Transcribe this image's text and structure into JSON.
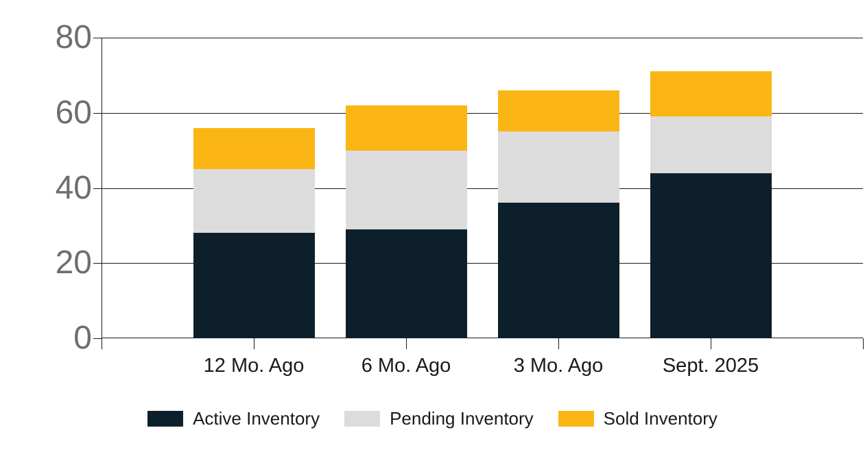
{
  "chart_data": {
    "type": "bar",
    "stacked": true,
    "title": "",
    "xlabel": "",
    "ylabel": "",
    "categories": [
      "12 Mo. Ago",
      "6 Mo. Ago",
      "3 Mo. Ago",
      "Sept. 2025"
    ],
    "series": [
      {
        "name": "Active Inventory",
        "color": "#0d1f2b",
        "values": [
          28,
          29,
          36,
          44
        ]
      },
      {
        "name": "Pending Inventory",
        "color": "#dcdcdc",
        "values": [
          17,
          21,
          19,
          15
        ]
      },
      {
        "name": "Sold Inventory",
        "color": "#fbb615",
        "values": [
          11,
          12,
          11,
          12
        ]
      }
    ],
    "totals": [
      56,
      62,
      66,
      71
    ],
    "ylim": [
      0,
      80
    ],
    "yticks": [
      0,
      20,
      40,
      60,
      80
    ],
    "grid": true,
    "legend_position": "bottom"
  },
  "colors": {
    "axis_line": "#1a1a1a",
    "y_tick_text": "#6e6e6e",
    "label_text": "#1a1a1a",
    "background": "#ffffff"
  }
}
